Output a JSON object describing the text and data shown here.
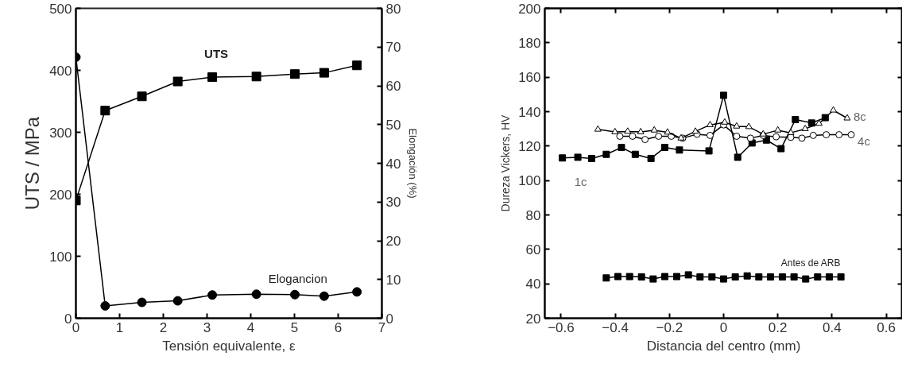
{
  "chart_data": [
    {
      "type": "line",
      "xlabel": "Tensión equivalente, ε",
      "ylabel": "UTS / MPa",
      "y2label": "Elongación (%)",
      "xlim": [
        0,
        7
      ],
      "xticks": [
        0,
        1,
        2,
        3,
        4,
        5,
        6,
        7
      ],
      "ylim": [
        0,
        500
      ],
      "yticks": [
        0,
        100,
        200,
        300,
        400,
        500
      ],
      "y2lim": [
        0,
        80
      ],
      "y2ticks": [
        0,
        10,
        20,
        30,
        40,
        50,
        60,
        70,
        80
      ],
      "grid": false,
      "series": [
        {
          "name": "UTS",
          "color": "#000000",
          "marker": "square",
          "x": [
            0,
            0.67,
            1.51,
            2.33,
            3.12,
            4.13,
            5.01,
            5.68,
            6.43
          ],
          "values": [
            190,
            335,
            358,
            382,
            389,
            390,
            394,
            396,
            408
          ]
        },
        {
          "name": "Elogancion",
          "color": "#000000",
          "marker": "circle",
          "axis": "y2",
          "x": [
            0,
            0.67,
            1.51,
            2.33,
            3.12,
            4.13,
            5.01,
            5.68,
            6.43
          ],
          "values": [
            67.4,
            3.2,
            4.1,
            4.5,
            6.0,
            6.2,
            6.1,
            5.7,
            6.8
          ]
        }
      ]
    },
    {
      "type": "line",
      "xlabel": "Distancia del centro (mm)",
      "ylabel": "Dureza Vickers, HV",
      "xlim": [
        -0.66,
        0.66
      ],
      "xticks": [
        -0.6,
        -0.4,
        -0.2,
        0,
        0.2,
        0.4,
        0.6
      ],
      "ylim": [
        20,
        200
      ],
      "yticks": [
        20,
        40,
        60,
        80,
        100,
        120,
        140,
        160,
        180,
        200
      ],
      "grid": false,
      "series": [
        {
          "name": "1c",
          "color": "#000000",
          "marker": "square",
          "x": [
            -0.595,
            -0.538,
            -0.487,
            -0.433,
            -0.377,
            -0.326,
            -0.268,
            -0.217,
            -0.163,
            -0.054,
            0,
            0.052,
            0.105,
            0.158,
            0.212,
            0.265,
            0.325,
            0.375
          ],
          "values": [
            113.1,
            113.5,
            112.8,
            115.2,
            119.2,
            115.2,
            112.8,
            119.2,
            117.7,
            117.2,
            149.5,
            113.5,
            121.8,
            123.5,
            118.5,
            135.4,
            133.4,
            136.5
          ]
        },
        {
          "name": "4c",
          "color": "#000000",
          "marker": "circle",
          "x": [
            -0.383,
            -0.336,
            -0.29,
            -0.24,
            -0.193,
            -0.151,
            -0.098,
            -0.05,
            0,
            0.048,
            0.099,
            0.146,
            0.194,
            0.248,
            0.289,
            0.331,
            0.379,
            0.426,
            0.471
          ],
          "values": [
            125.7,
            125.7,
            123.8,
            125.7,
            125.7,
            124.6,
            126.9,
            126.2,
            132.3,
            125.7,
            124.6,
            126.2,
            125.4,
            125.1,
            124.6,
            126.2,
            126.6,
            126.6,
            126.6
          ]
        },
        {
          "name": "8c",
          "color": "#000000",
          "marker": "triangle",
          "x": [
            -0.464,
            -0.401,
            -0.354,
            -0.306,
            -0.256,
            -0.207,
            -0.157,
            -0.104,
            -0.05,
            0.004,
            0.048,
            0.093,
            0.146,
            0.2,
            0.248,
            0.301,
            0.352,
            0.405,
            0.456
          ],
          "values": [
            129.7,
            128.2,
            128.5,
            128.2,
            129.2,
            128,
            124.6,
            128.5,
            132.3,
            133.8,
            131.5,
            131.2,
            126.9,
            129.2,
            127.7,
            130,
            133.1,
            140.8,
            136.2
          ]
        },
        {
          "name": "Antes de ARB",
          "color": "#000000",
          "marker": "square",
          "x": [
            -0.433,
            -0.39,
            -0.347,
            -0.303,
            -0.26,
            -0.217,
            -0.173,
            -0.13,
            -0.087,
            -0.043,
            0,
            0.043,
            0.087,
            0.13,
            0.173,
            0.217,
            0.26,
            0.303,
            0.347,
            0.39,
            0.433
          ],
          "values": [
            43.4,
            44.2,
            44.2,
            44.0,
            42.8,
            44.2,
            44.2,
            45.2,
            44.0,
            44.0,
            42.8,
            44.0,
            44.6,
            44.0,
            44.0,
            44.0,
            44.0,
            42.8,
            44.0,
            44.0,
            44.0
          ]
        }
      ]
    }
  ]
}
